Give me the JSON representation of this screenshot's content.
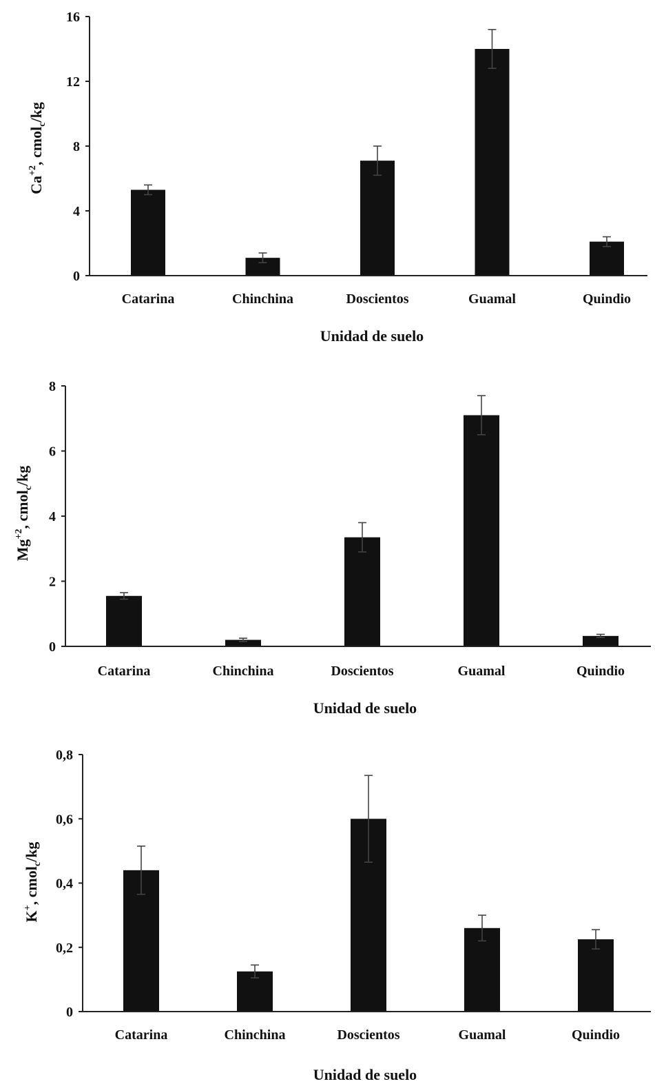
{
  "colors": {
    "bar": "#111111",
    "axis": "#222222",
    "error": "#444444",
    "text": "#111111"
  },
  "chart_data": [
    {
      "type": "bar",
      "ylabel": "Ca⁺², cmolc/kg",
      "ylabel_parts": {
        "pre": "Ca",
        "sup": "+2",
        "mid": ", cmol",
        "sub": "c",
        "post": "/kg"
      },
      "xlabel": "Unidad de suelo",
      "categories": [
        "Catarina",
        "Chinchina",
        "Doscientos",
        "Guamal",
        "Quindio"
      ],
      "values": [
        5.3,
        1.1,
        7.1,
        14.0,
        2.1
      ],
      "errors": [
        0.3,
        0.3,
        0.9,
        1.2,
        0.3
      ],
      "ylim": [
        0,
        16
      ],
      "yticks": [
        0,
        4,
        8,
        12,
        16
      ],
      "ytick_labels": [
        "0",
        "4",
        "8",
        "12",
        "16"
      ],
      "grid": false
    },
    {
      "type": "bar",
      "ylabel": "Mg⁺², cmolc/kg",
      "ylabel_parts": {
        "pre": "Mg",
        "sup": "+2",
        "mid": ", cmol",
        "sub": "c",
        "post": "/kg"
      },
      "xlabel": "Unidad de suelo",
      "categories": [
        "Catarina",
        "Chinchina",
        "Doscientos",
        "Guamal",
        "Quindio"
      ],
      "values": [
        1.55,
        0.2,
        3.35,
        7.1,
        0.32
      ],
      "errors": [
        0.1,
        0.05,
        0.45,
        0.6,
        0.05
      ],
      "ylim": [
        0,
        8
      ],
      "yticks": [
        0,
        2,
        4,
        6,
        8
      ],
      "ytick_labels": [
        "0",
        "2",
        "4",
        "6",
        "8"
      ],
      "grid": false
    },
    {
      "type": "bar",
      "ylabel": "K⁺, cmolc/kg",
      "ylabel_parts": {
        "pre": "K",
        "sup": "+",
        "mid": ", cmol",
        "sub": "c",
        "post": "/kg"
      },
      "xlabel": "Unidad de suelo",
      "categories": [
        "Catarina",
        "Chinchina",
        "Doscientos",
        "Guamal",
        "Quindio"
      ],
      "values": [
        0.44,
        0.125,
        0.6,
        0.26,
        0.225
      ],
      "errors": [
        0.075,
        0.02,
        0.135,
        0.04,
        0.03
      ],
      "ylim": [
        0,
        0.8
      ],
      "yticks": [
        0,
        0.2,
        0.4,
        0.6,
        0.8
      ],
      "ytick_labels": [
        "0",
        "0,2",
        "0,4",
        "0,6",
        "0,8"
      ],
      "grid": false
    }
  ]
}
